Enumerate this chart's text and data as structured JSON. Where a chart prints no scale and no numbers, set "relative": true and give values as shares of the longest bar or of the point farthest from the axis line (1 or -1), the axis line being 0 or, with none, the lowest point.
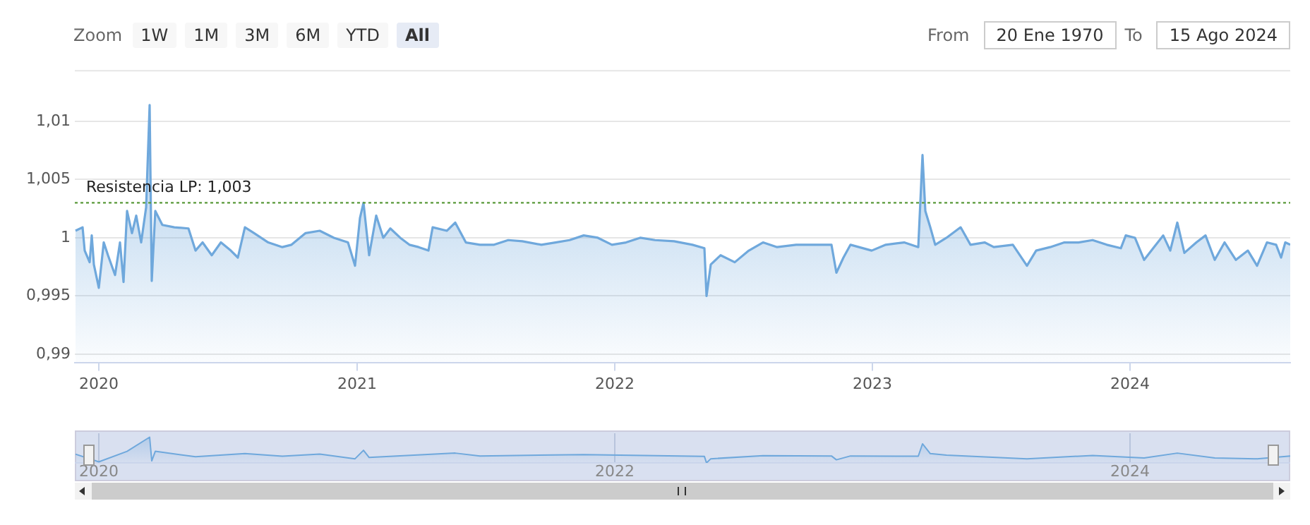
{
  "chart_data": [
    {
      "type": "area",
      "x": [
        "2019-11-29",
        "2019-12-09",
        "2019-12-12",
        "2019-12-19",
        "2019-12-22",
        "2019-12-25",
        "2020-01-01",
        "2020-01-08",
        "2020-01-14",
        "2020-01-24",
        "2020-01-31",
        "2020-02-05",
        "2020-02-10",
        "2020-02-17",
        "2020-02-23",
        "2020-03-01",
        "2020-03-08",
        "2020-03-13",
        "2020-03-16",
        "2020-03-21",
        "2020-03-31",
        "2020-04-17",
        "2020-05-07",
        "2020-05-17",
        "2020-05-27",
        "2020-06-09",
        "2020-06-22",
        "2020-07-06",
        "2020-07-16",
        "2020-07-26",
        "2020-08-08",
        "2020-08-28",
        "2020-09-17",
        "2020-09-30",
        "2020-10-20",
        "2020-11-09",
        "2020-11-29",
        "2020-12-19",
        "2020-12-29",
        "2021-01-05",
        "2021-01-10",
        "2021-01-18",
        "2021-01-28",
        "2021-02-07",
        "2021-02-17",
        "2021-03-03",
        "2021-03-16",
        "2021-03-29",
        "2021-04-12",
        "2021-04-18",
        "2021-05-08",
        "2021-05-20",
        "2021-06-04",
        "2021-06-24",
        "2021-07-14",
        "2021-08-03",
        "2021-08-23",
        "2021-09-19",
        "2021-10-09",
        "2021-10-29",
        "2021-11-18",
        "2021-12-08",
        "2021-12-28",
        "2022-01-17",
        "2022-02-06",
        "2022-02-27",
        "2022-03-26",
        "2022-04-21",
        "2022-05-08",
        "2022-05-11",
        "2022-05-17",
        "2022-05-31",
        "2022-06-20",
        "2022-07-10",
        "2022-07-30",
        "2022-08-19",
        "2022-09-15",
        "2022-10-12",
        "2022-11-04",
        "2022-11-11",
        "2022-11-21",
        "2022-12-01",
        "2022-12-31",
        "2023-01-20",
        "2023-02-15",
        "2023-03-07",
        "2023-03-13",
        "2023-03-17",
        "2023-03-24",
        "2023-03-31",
        "2023-04-16",
        "2023-05-06",
        "2023-05-20",
        "2023-06-09",
        "2023-06-22",
        "2023-07-19",
        "2023-08-08",
        "2023-08-21",
        "2023-09-10",
        "2023-09-30",
        "2023-10-20",
        "2023-11-09",
        "2023-11-29",
        "2023-12-19",
        "2023-12-26",
        "2024-01-08",
        "2024-01-21",
        "2024-02-04",
        "2024-02-17",
        "2024-02-27",
        "2024-03-08",
        "2024-03-18",
        "2024-04-04",
        "2024-04-17",
        "2024-04-30",
        "2024-05-14",
        "2024-05-30",
        "2024-06-16",
        "2024-06-29",
        "2024-07-13",
        "2024-07-26",
        "2024-08-02",
        "2024-08-08",
        "2024-08-15"
      ],
      "series": [
        {
          "color": "#6fa8dc",
          "values": [
            1.0006,
            1.0009,
            0.9989,
            0.9979,
            1.0002,
            0.9977,
            0.9957,
            0.9996,
            0.9985,
            0.9968,
            0.9996,
            0.9962,
            1.0023,
            1.0004,
            1.0019,
            0.9996,
            1.0026,
            1.0114,
            0.9963,
            1.0023,
            1.0011,
            1.0009,
            1.0008,
            0.9989,
            0.9996,
            0.9985,
            0.9996,
            0.9989,
            0.9983,
            1.0009,
            1.0004,
            0.9996,
            0.9992,
            0.9994,
            1.0004,
            1.0006,
            1.0,
            0.9996,
            0.9976,
            1.0017,
            1.003,
            0.9985,
            1.0019,
            1.0,
            1.0008,
            1.0,
            0.9994,
            0.9992,
            0.9989,
            1.0009,
            1.0006,
            1.0013,
            0.9996,
            0.9994,
            0.9994,
            0.9998,
            0.9997,
            0.9994,
            0.9996,
            0.9998,
            1.0002,
            1.0,
            0.9994,
            0.9996,
            1.0,
            0.9998,
            0.9997,
            0.9994,
            0.9991,
            0.995,
            0.9977,
            0.9985,
            0.9979,
            0.9989,
            0.9996,
            0.9992,
            0.9994,
            0.9994,
            0.9994,
            0.997,
            0.9983,
            0.9994,
            0.9989,
            0.9994,
            0.9996,
            0.9992,
            1.0071,
            1.0023,
            1.0009,
            0.9994,
            1.0,
            1.0009,
            0.9994,
            0.9996,
            0.9992,
            0.9994,
            0.9976,
            0.9989,
            0.9992,
            0.9996,
            0.9996,
            0.9998,
            0.9994,
            0.9991,
            1.0002,
            1.0,
            0.9981,
            0.9992,
            1.0002,
            0.9989,
            1.0013,
            0.9987,
            0.9996,
            1.0002,
            0.9981,
            0.9996,
            0.9981,
            0.9989,
            0.9976,
            0.9996,
            0.9994,
            0.9983,
            0.9996,
            0.9994
          ]
        }
      ],
      "xlim": [
        "2019-11-28",
        "2024-08-15"
      ],
      "xticks": [
        "2020",
        "2021",
        "2022",
        "2023",
        "2024"
      ],
      "ylim": [
        0.9893,
        1.0144
      ],
      "yticks": [
        {
          "value": 0.99,
          "label": "0,99"
        },
        {
          "value": 0.995,
          "label": "0,995"
        },
        1,
        {
          "value": 1.005,
          "label": "1,005"
        },
        {
          "value": 1.01,
          "label": "1,01"
        }
      ],
      "grid": "y",
      "legend": false,
      "ref_lines": [
        {
          "axis": "y",
          "value": 1.003,
          "label": "Resistencia LP: 1,003",
          "color": "#5a9a3a",
          "line_style": "dotted"
        }
      ],
      "annotations": [
        "Zoom",
        "1W",
        "1M",
        "3M",
        "6M",
        "YTD",
        "All",
        "From",
        "20 Ene 1970",
        "To",
        "15 Ago 2024"
      ]
    },
    {
      "type": "area",
      "relative": true,
      "x": [
        "2019-11-29",
        "2020-01-01",
        "2020-02-10",
        "2020-03-13",
        "2020-03-16",
        "2020-03-21",
        "2020-05-17",
        "2020-07-26",
        "2020-09-17",
        "2020-11-09",
        "2020-12-29",
        "2021-01-10",
        "2021-01-18",
        "2021-05-20",
        "2021-06-24",
        "2021-11-18",
        "2022-05-08",
        "2022-05-11",
        "2022-05-17",
        "2022-07-30",
        "2022-11-04",
        "2022-11-11",
        "2022-12-01",
        "2023-03-07",
        "2023-03-13",
        "2023-03-24",
        "2023-04-16",
        "2023-08-08",
        "2023-11-09",
        "2024-01-21",
        "2024-03-08",
        "2024-04-30",
        "2024-06-29",
        "2024-08-15"
      ],
      "series": [
        {
          "color": "#6fa8dc",
          "values": [
            0.34,
            0.04,
            0.45,
            1,
            0.08,
            0.45,
            0.24,
            0.36,
            0.26,
            0.34,
            0.16,
            0.49,
            0.21,
            0.38,
            0.27,
            0.32,
            0.25,
            0,
            0.16,
            0.28,
            0.27,
            0.12,
            0.27,
            0.26,
            0.74,
            0.36,
            0.3,
            0.16,
            0.29,
            0.19,
            0.38,
            0.19,
            0.16,
            0.27
          ]
        }
      ],
      "xlim": [
        "2019-11-28",
        "2024-08-15"
      ],
      "xticks": [
        "2020",
        "2022",
        "2024"
      ],
      "tick_labels": "x",
      "grid": "x",
      "legend": false
    }
  ]
}
